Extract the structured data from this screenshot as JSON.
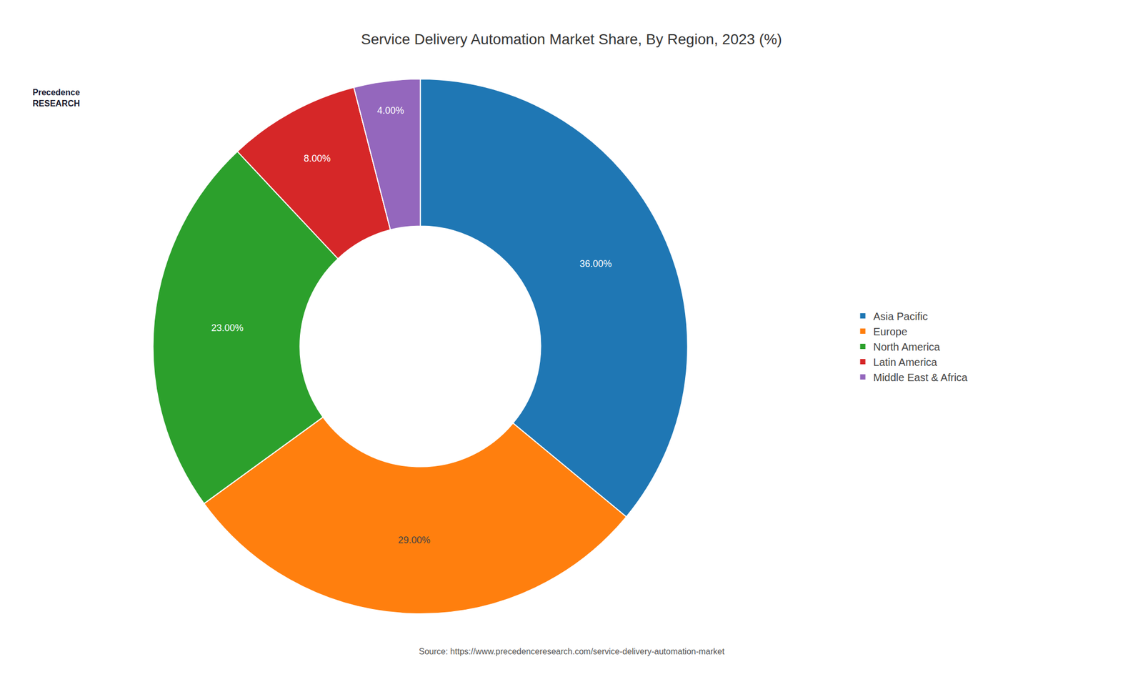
{
  "chart_data": {
    "type": "pie",
    "title": "Service Delivery Automation Market Share, By Region, 2023 (%)",
    "categories": [
      "Asia Pacific",
      "Europe",
      "North America",
      "Latin America",
      "Middle East & Africa"
    ],
    "values": [
      36.0,
      29.0,
      23.0,
      8.0,
      4.0
    ],
    "value_labels": [
      "36.00%",
      "29.00%",
      "23.00%",
      "8.00%",
      "4.00%"
    ],
    "data_labels": true,
    "legend": "right",
    "annotations": [
      "Source: https://www.precedenceresearch.com/service-delivery-automation-market",
      "Precedence\nRESEARCH"
    ]
  }
}
